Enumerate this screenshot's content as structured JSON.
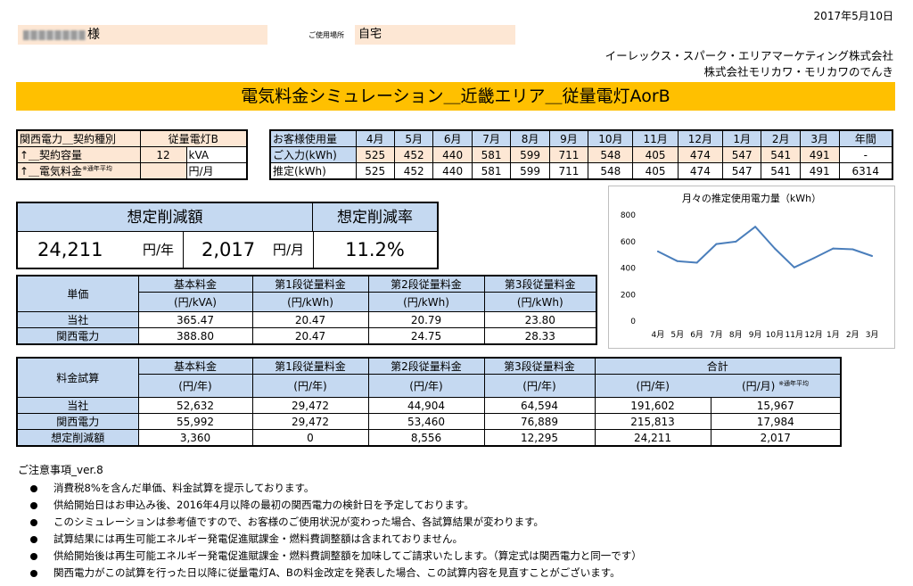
{
  "date": "2017年5月10日",
  "customer": {
    "suffix": "様"
  },
  "usage_place": {
    "label": "ご使用場所",
    "value": "自宅"
  },
  "companies": [
    "イーレックス・スパーク・エリアマーケティング株式会社",
    "株式会社モリカワ・モリカワのでんき"
  ],
  "banner": "電気料金シミュレーション＿近畿エリア＿従量電灯AorB",
  "contract": {
    "rows": [
      {
        "label": "関西電力＿契約種別",
        "value": "従量電灯B",
        "unit": ""
      },
      {
        "label": "↑＿契約容量",
        "value": "12",
        "unit": "kVA"
      },
      {
        "label": "↑＿電気料金",
        "note": "※通年平均",
        "value": "",
        "unit": "円/月"
      }
    ]
  },
  "usage": {
    "header": "お客様使用量",
    "months": [
      "4月",
      "5月",
      "6月",
      "7月",
      "8月",
      "9月",
      "10月",
      "11月",
      "12月",
      "1月",
      "2月",
      "3月"
    ],
    "total_label": "年間",
    "input_label": "ご入力(kWh)",
    "input": [
      "525",
      "452",
      "440",
      "581",
      "599",
      "711",
      "548",
      "405",
      "474",
      "547",
      "541",
      "491"
    ],
    "input_total": "-",
    "estimate_label": "推定(kWh)",
    "estimate": [
      "525",
      "452",
      "440",
      "581",
      "599",
      "711",
      "548",
      "405",
      "474",
      "547",
      "541",
      "491"
    ],
    "estimate_total": "6314"
  },
  "summary": {
    "saving_label": "想定削減額",
    "rate_label": "想定削減率",
    "yearly": "24,211",
    "yearly_unit": "円/年",
    "monthly": "2,017",
    "monthly_unit": "円/月",
    "rate": "11.2%"
  },
  "unit_price": {
    "row_header": "単価",
    "cols": [
      {
        "name": "基本料金",
        "unit": "(円/kVA)"
      },
      {
        "name": "第1段従量料金",
        "unit": "(円/kWh)"
      },
      {
        "name": "第2段従量料金",
        "unit": "(円/kWh)"
      },
      {
        "name": "第3段従量料金",
        "unit": "(円/kWh)"
      }
    ],
    "rows": [
      {
        "label": "当社",
        "values": [
          "365.47",
          "20.47",
          "20.79",
          "23.80"
        ]
      },
      {
        "label": "関西電力",
        "values": [
          "388.80",
          "20.47",
          "24.75",
          "28.33"
        ]
      }
    ]
  },
  "fee": {
    "row_header": "料金試算",
    "cols": [
      {
        "name": "基本料金",
        "unit": "(円/年)"
      },
      {
        "name": "第1段従量料金",
        "unit": "(円/年)"
      },
      {
        "name": "第2段従量料金",
        "unit": "(円/年)"
      },
      {
        "name": "第3段従量料金",
        "unit": "(円/年)"
      }
    ],
    "total_header": "合計",
    "total_unit_year": "(円/年)",
    "total_unit_month": "(円/月)",
    "total_note": "※通年平均",
    "rows": [
      {
        "label": "当社",
        "values": [
          "52,632",
          "29,472",
          "44,904",
          "64,594",
          "191,602",
          "15,967"
        ]
      },
      {
        "label": "関西電力",
        "values": [
          "55,992",
          "29,472",
          "53,460",
          "76,889",
          "215,813",
          "17,984"
        ]
      },
      {
        "label": "想定削減額",
        "values": [
          "3,360",
          "0",
          "8,556",
          "12,295",
          "24,211",
          "2,017"
        ]
      }
    ]
  },
  "notes": {
    "title": "ご注意事項_ver.8",
    "items": [
      "消費税8%を含んだ単価、料金試算を提示しております。",
      "供給開始日はお申込み後、2016年4月以降の最初の関西電力の検針日を予定しております。",
      "このシミュレーションは参考値ですので、お客様のご使用状況が変わった場合、各試算結果が変わります。",
      "試算結果には再生可能エネルギー発電促進賦課金・燃料費調整額は含まれておりません。",
      "供給開始後は再生可能エネルギー発電促進賦課金・燃料費調整額を加味してご請求いたします。（算定式は関西電力と同一です）",
      "関西電力がこの試算を行った日以降に従量電灯A、Bの料金改定を発表した場合、この試算内容を見直すことがございます。"
    ]
  },
  "chart_data": {
    "type": "line",
    "title": "月々の推定使用電力量（kWh）",
    "categories": [
      "4月",
      "5月",
      "6月",
      "7月",
      "8月",
      "9月",
      "10月",
      "11月",
      "12月",
      "1月",
      "2月",
      "3月"
    ],
    "values": [
      525,
      452,
      440,
      581,
      599,
      711,
      548,
      405,
      474,
      547,
      541,
      491
    ],
    "ylim": [
      0,
      800
    ],
    "yticks": [
      0,
      200,
      400,
      600,
      800
    ],
    "grid": false,
    "legend": "none",
    "line_color": "#4a7ebb"
  }
}
